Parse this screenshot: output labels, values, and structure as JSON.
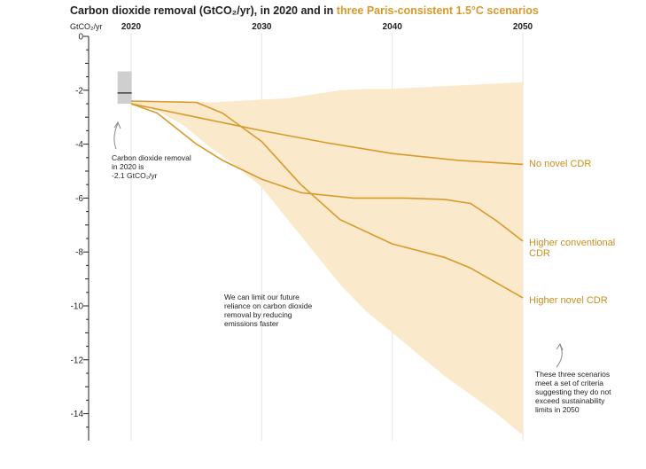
{
  "chart_data": {
    "type": "line",
    "title": "Carbon dioxide removal (GtCO₂/yr), in 2020 and in",
    "title_highlight": "three Paris-consistent 1.5°C scenarios",
    "ylabel": "GtCO₂/yr",
    "xlim": [
      2020,
      2050
    ],
    "ylim": [
      -15,
      0
    ],
    "x_ticks": [
      2020,
      2030,
      2040,
      2050
    ],
    "y_ticks": [
      0,
      -2,
      -4,
      -6,
      -8,
      -10,
      -12,
      -14
    ],
    "range_band": {
      "x": [
        2020,
        2022,
        2024,
        2026,
        2028,
        2030,
        2032,
        2034,
        2036,
        2038,
        2040,
        2042,
        2044,
        2046,
        2048,
        2050
      ],
      "upper": [
        -2.4,
        -2.4,
        -2.4,
        -2.45,
        -2.4,
        -2.35,
        -2.3,
        -2.15,
        -2.0,
        -1.95,
        -1.95,
        -1.9,
        -1.85,
        -1.8,
        -1.75,
        -1.7
      ],
      "lower": [
        -2.55,
        -2.75,
        -3.3,
        -4.1,
        -4.8,
        -5.6,
        -6.8,
        -8.0,
        -9.2,
        -10.2,
        -11.0,
        -11.8,
        -12.6,
        -13.3,
        -14.0,
        -14.8
      ]
    },
    "series": [
      {
        "name": "No novel CDR",
        "x": [
          2020,
          2025,
          2030,
          2035,
          2040,
          2045,
          2050
        ],
        "values": [
          -2.5,
          -3.0,
          -3.5,
          -3.95,
          -4.35,
          -4.6,
          -4.75
        ]
      },
      {
        "name": "Higher conventional CDR",
        "x": [
          2020,
          2025,
          2027,
          2030,
          2033,
          2036,
          2040,
          2044,
          2046,
          2050
        ],
        "values": [
          -2.4,
          -2.45,
          -2.85,
          -3.9,
          -5.5,
          -6.8,
          -7.7,
          -8.2,
          -8.6,
          -9.7
        ]
      },
      {
        "name": "Higher novel CDR",
        "x": [
          2020,
          2022,
          2025,
          2027,
          2030,
          2033,
          2037,
          2041,
          2044,
          2046,
          2048,
          2050
        ],
        "values": [
          -2.5,
          -2.85,
          -4.0,
          -4.6,
          -5.3,
          -5.8,
          -6.0,
          -6.0,
          -6.05,
          -6.2,
          -6.85,
          -7.6
        ]
      }
    ],
    "marker_2020": {
      "x": 2019.5,
      "value": -2.1,
      "range": [
        -1.3,
        -2.5
      ]
    },
    "annotations": {
      "cdr_2020": [
        "Carbon dioxide removal",
        "in 2020 is",
        "-2.1 GtCO₂/yr"
      ],
      "reliance": [
        "We can limit our future",
        "reliance  on carbon dioxide",
        "removal by reducing",
        "emissions faster"
      ],
      "criteria": [
        "These three scenarios",
        "meet a set of criteria",
        "suggesting they do not",
        "exceed sustainability",
        "limits in 2050"
      ]
    },
    "series_labels": {
      "no_novel": [
        "No novel CDR"
      ],
      "higher_conventional": [
        "Higher conventional",
        "CDR"
      ],
      "higher_novel": [
        "Higher novel CDR"
      ]
    },
    "colors": {
      "line": "#d99a2b",
      "band": "#fbe9cb",
      "marker_box": "#cfcfcf",
      "label": "#c8901f"
    },
    "grid": "vertical"
  }
}
